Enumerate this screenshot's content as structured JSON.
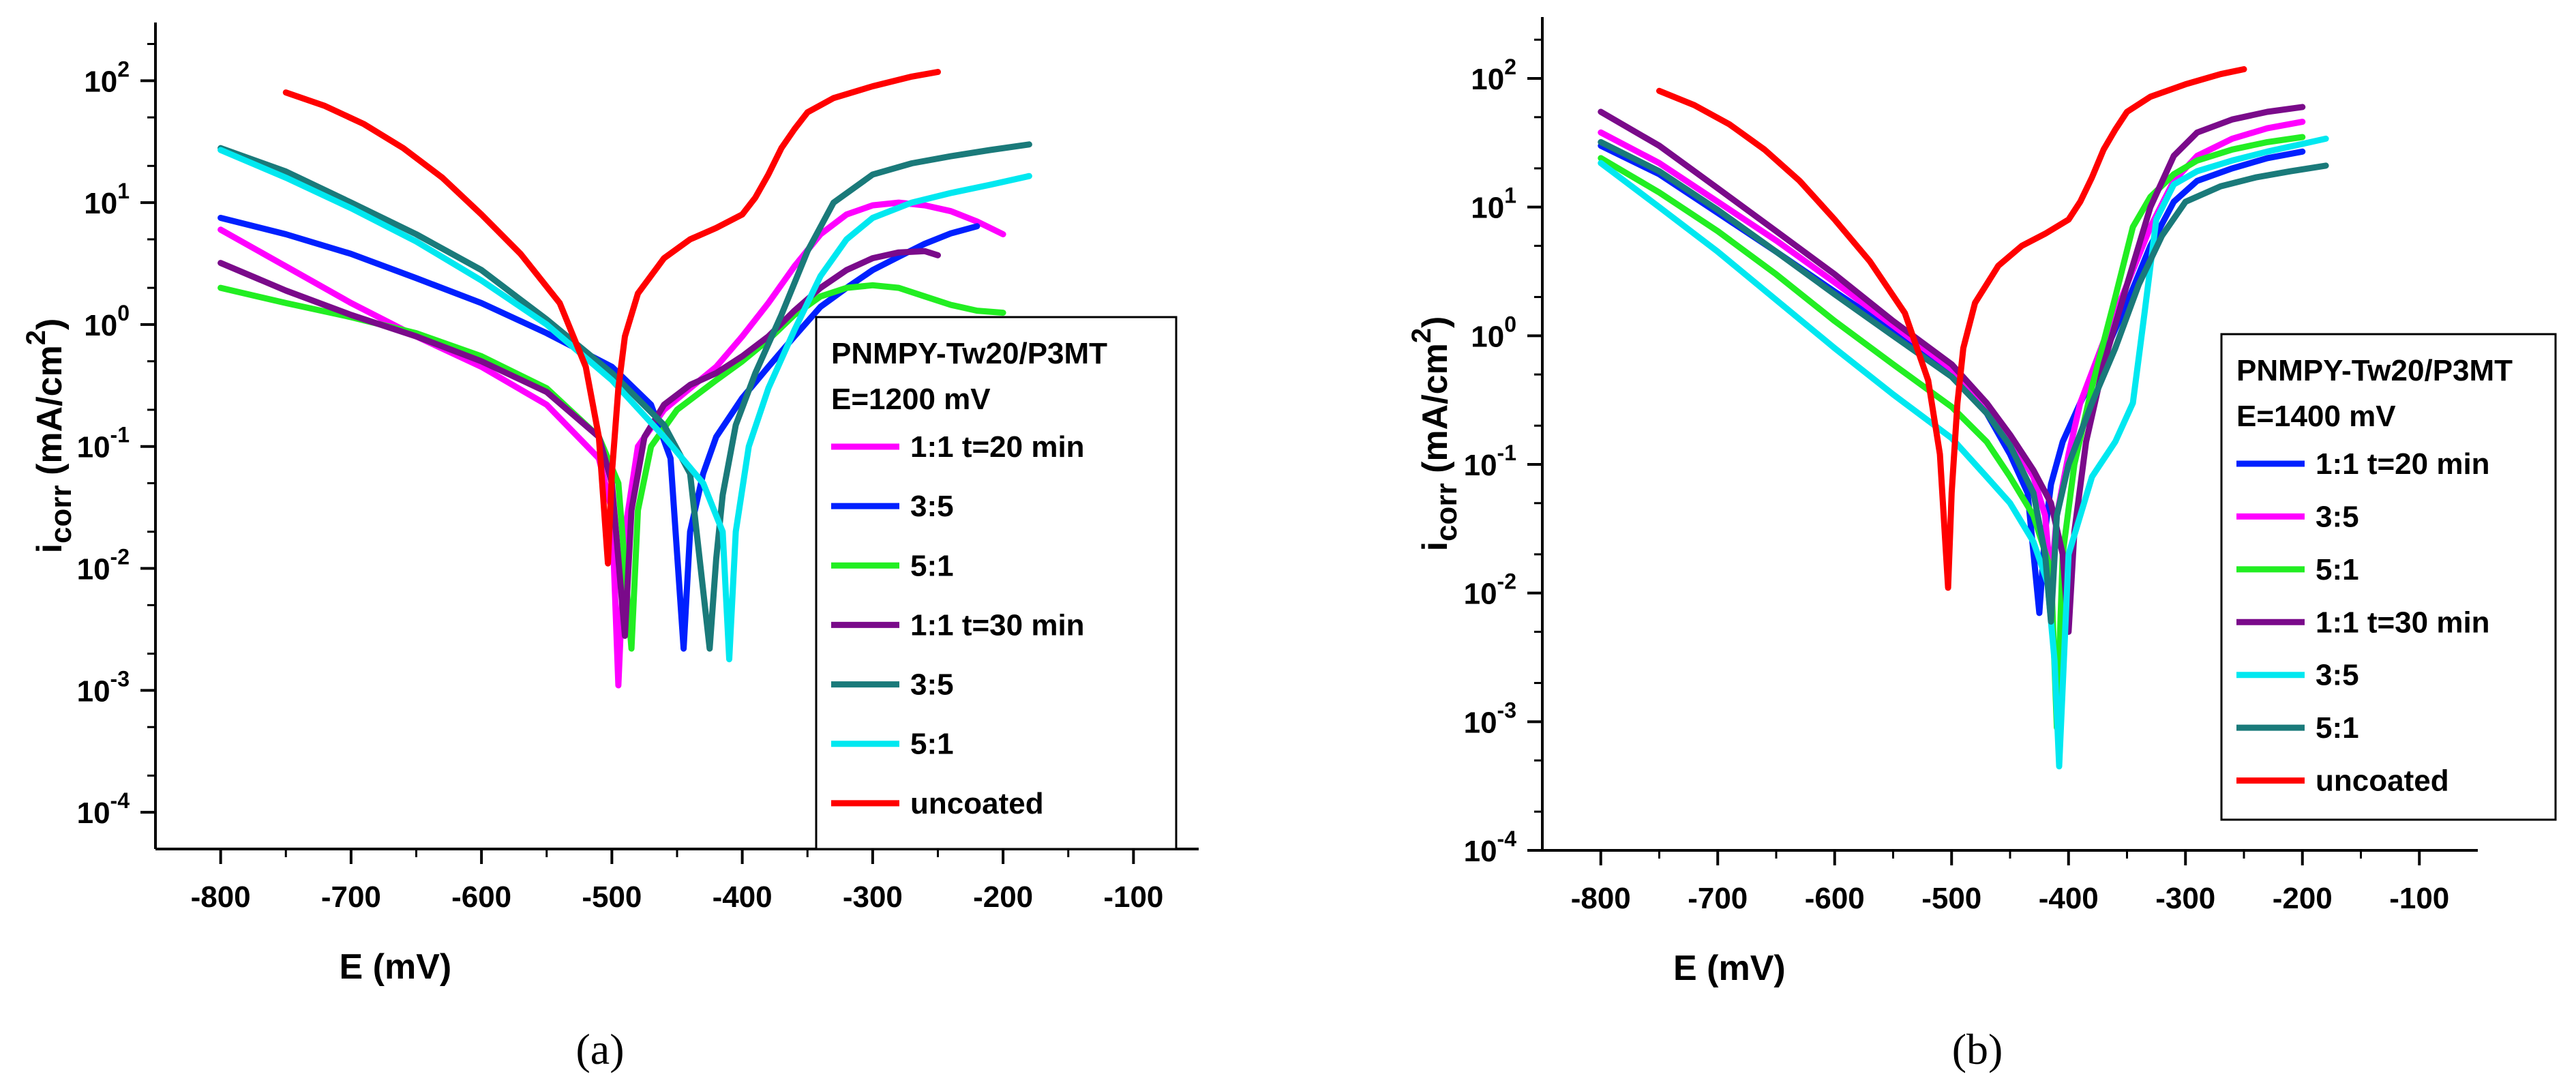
{
  "chart_data": [
    {
      "panel": "a",
      "type": "line",
      "caption": "(a)",
      "xlabel": "E (mV)",
      "ylabel": "i",
      "ylabel_sub": "corr",
      "ylabel_unit": " (mA/cm",
      "ylabel_unit_sup": "2",
      "ylabel_close": ")",
      "xlim": [
        -850,
        -50
      ],
      "ylim": [
        5e-05,
        300
      ],
      "yscale": "log",
      "xticks": [
        -800,
        -700,
        -600,
        -500,
        -400,
        -300,
        -200,
        -100
      ],
      "yticks": [
        {
          "base": "10",
          "exp": "2",
          "v": 100
        },
        {
          "base": "10",
          "exp": "1",
          "v": 10
        },
        {
          "base": "10",
          "exp": "0",
          "v": 1
        },
        {
          "base": "10",
          "exp": "-1",
          "v": 0.1
        },
        {
          "base": "10",
          "exp": "-2",
          "v": 0.01
        },
        {
          "base": "10",
          "exp": "-3",
          "v": 0.001
        },
        {
          "base": "10",
          "exp": "-4",
          "v": 0.0001
        }
      ],
      "legend_title": "PNMPY-Tw20/P3MT",
      "legend_subtitle": "E=1200 mV",
      "legend_position": "right",
      "series": [
        {
          "name": "1:1 t=20 min",
          "color": "#ff00ff",
          "x": [
            -800,
            -750,
            -700,
            -650,
            -600,
            -550,
            -510,
            -500,
            -495,
            -490,
            -480,
            -460,
            -440,
            -420,
            -400,
            -380,
            -360,
            -340,
            -320,
            -300,
            -280,
            -260,
            -240,
            -220,
            -200
          ],
          "y": [
            6,
            3,
            1.5,
            0.8,
            0.45,
            0.22,
            0.08,
            0.03,
            0.0011,
            0.02,
            0.1,
            0.2,
            0.3,
            0.45,
            0.8,
            1.5,
            3,
            5.5,
            8,
            9.5,
            10,
            9.5,
            8.5,
            7,
            5.5
          ]
        },
        {
          "name": "3:5",
          "color": "#0020ff",
          "x": [
            -800,
            -750,
            -700,
            -650,
            -600,
            -550,
            -500,
            -470,
            -455,
            -445,
            -440,
            -430,
            -420,
            -400,
            -380,
            -360,
            -340,
            -320,
            -300,
            -280,
            -260,
            -240,
            -220
          ],
          "y": [
            7.5,
            5.5,
            3.8,
            2.4,
            1.5,
            0.85,
            0.45,
            0.22,
            0.08,
            0.0022,
            0.02,
            0.06,
            0.12,
            0.25,
            0.45,
            0.8,
            1.4,
            2,
            2.8,
            3.6,
            4.6,
            5.6,
            6.4
          ]
        },
        {
          "name": "5:1",
          "color": "#22ee22",
          "x": [
            -800,
            -750,
            -700,
            -650,
            -600,
            -550,
            -510,
            -495,
            -485,
            -480,
            -470,
            -450,
            -420,
            -400,
            -380,
            -360,
            -340,
            -320,
            -300,
            -280,
            -260,
            -240,
            -220,
            -200
          ],
          "y": [
            2,
            1.5,
            1.15,
            0.85,
            0.55,
            0.3,
            0.12,
            0.05,
            0.0022,
            0.03,
            0.1,
            0.2,
            0.35,
            0.5,
            0.75,
            1.2,
            1.7,
            2,
            2.1,
            2,
            1.7,
            1.45,
            1.3,
            1.25
          ]
        },
        {
          "name": "1:1 t=30 min",
          "color": "#7a0a8a",
          "x": [
            -800,
            -750,
            -700,
            -650,
            -600,
            -550,
            -510,
            -500,
            -490,
            -485,
            -475,
            -460,
            -440,
            -420,
            -400,
            -380,
            -360,
            -340,
            -320,
            -300,
            -280,
            -260,
            -250
          ],
          "y": [
            3.2,
            1.9,
            1.2,
            0.8,
            0.5,
            0.28,
            0.12,
            0.05,
            0.0028,
            0.03,
            0.12,
            0.22,
            0.32,
            0.4,
            0.55,
            0.8,
            1.3,
            2,
            2.8,
            3.5,
            3.9,
            4,
            3.7
          ]
        },
        {
          "name": "3:5",
          "color": "#1a7a7a",
          "x": [
            -800,
            -750,
            -700,
            -650,
            -600,
            -550,
            -500,
            -460,
            -440,
            -425,
            -420,
            -415,
            -405,
            -390,
            -370,
            -350,
            -330,
            -300,
            -270,
            -240,
            -210,
            -180
          ],
          "y": [
            28,
            18,
            10,
            5.5,
            2.8,
            1.1,
            0.4,
            0.15,
            0.06,
            0.0022,
            0.012,
            0.04,
            0.15,
            0.4,
            1.2,
            4,
            10,
            17,
            21,
            24,
            27,
            30
          ]
        },
        {
          "name": "5:1",
          "color": "#00e8f0",
          "x": [
            -800,
            -750,
            -700,
            -650,
            -600,
            -550,
            -500,
            -460,
            -430,
            -415,
            -410,
            -405,
            -395,
            -380,
            -360,
            -340,
            -320,
            -300,
            -270,
            -240,
            -210,
            -180
          ],
          "y": [
            27,
            16,
            9,
            4.8,
            2.3,
            1.0,
            0.35,
            0.12,
            0.05,
            0.02,
            0.0018,
            0.02,
            0.1,
            0.3,
            0.9,
            2.5,
            5,
            7.5,
            10,
            12,
            14,
            16.5
          ]
        },
        {
          "name": "uncoated",
          "color": "#ff0000",
          "x": [
            -750,
            -720,
            -690,
            -660,
            -630,
            -600,
            -570,
            -540,
            -520,
            -510,
            -503,
            -500,
            -495,
            -490,
            -480,
            -460,
            -440,
            -420,
            -400,
            -390,
            -380,
            -370,
            -360,
            -350,
            -330,
            -300,
            -270,
            -250
          ],
          "y": [
            80,
            62,
            44,
            28,
            16,
            8,
            3.8,
            1.5,
            0.45,
            0.12,
            0.011,
            0.06,
            0.3,
            0.8,
            1.8,
            3.5,
            5,
            6.2,
            8,
            11,
            17,
            28,
            40,
            55,
            72,
            90,
            108,
            118
          ]
        }
      ]
    },
    {
      "panel": "b",
      "type": "line",
      "caption": "(b)",
      "xlabel": "E (mV)",
      "ylabel": "i",
      "ylabel_sub": "corr",
      "ylabel_unit": " (mA/cm",
      "ylabel_unit_sup": "2",
      "ylabel_close": ")",
      "xlim": [
        -850,
        -50
      ],
      "ylim": [
        0.0001,
        300
      ],
      "yscale": "log",
      "xticks": [
        -800,
        -700,
        -600,
        -500,
        -400,
        -300,
        -200,
        -100
      ],
      "yticks": [
        {
          "base": "10",
          "exp": "2",
          "v": 100
        },
        {
          "base": "10",
          "exp": "1",
          "v": 10
        },
        {
          "base": "10",
          "exp": "0",
          "v": 1
        },
        {
          "base": "10",
          "exp": "-1",
          "v": 0.1
        },
        {
          "base": "10",
          "exp": "-2",
          "v": 0.01
        },
        {
          "base": "10",
          "exp": "-3",
          "v": 0.001
        },
        {
          "base": "10",
          "exp": "-4",
          "v": 0.0001
        }
      ],
      "legend_title": "PNMPY-Tw20/P3MT",
      "legend_subtitle": "E=1400 mV",
      "legend_position": "right",
      "series": [
        {
          "name": "1:1 t=20 min",
          "color": "#0020ff",
          "x": [
            -800,
            -750,
            -700,
            -650,
            -600,
            -550,
            -500,
            -470,
            -450,
            -435,
            -425,
            -420,
            -415,
            -405,
            -390,
            -370,
            -350,
            -330,
            -310,
            -290,
            -260,
            -230,
            -200
          ],
          "y": [
            30,
            18,
            9,
            4.5,
            2.2,
            1.1,
            0.5,
            0.25,
            0.12,
            0.06,
            0.007,
            0.03,
            0.07,
            0.15,
            0.3,
            0.7,
            1.8,
            5,
            11,
            16,
            20,
            24,
            27
          ]
        },
        {
          "name": "3:5",
          "color": "#ff00ff",
          "x": [
            -800,
            -750,
            -700,
            -650,
            -600,
            -550,
            -500,
            -470,
            -450,
            -430,
            -420,
            -415,
            -410,
            -400,
            -390,
            -370,
            -350,
            -330,
            -310,
            -290,
            -260,
            -230,
            -200
          ],
          "y": [
            38,
            22,
            11,
            5.5,
            2.6,
            1.2,
            0.55,
            0.28,
            0.16,
            0.08,
            0.04,
            0.012,
            0.04,
            0.12,
            0.3,
            0.9,
            2.5,
            7,
            16,
            25,
            34,
            41,
            46
          ]
        },
        {
          "name": "5:1",
          "color": "#22ee22",
          "x": [
            -800,
            -750,
            -700,
            -650,
            -600,
            -550,
            -500,
            -470,
            -450,
            -430,
            -415,
            -410,
            -405,
            -395,
            -380,
            -360,
            -345,
            -330,
            -310,
            -290,
            -260,
            -230,
            -200
          ],
          "y": [
            24,
            13,
            6.5,
            3,
            1.3,
            0.6,
            0.28,
            0.15,
            0.08,
            0.04,
            0.015,
            0.0009,
            0.02,
            0.1,
            0.4,
            2,
            7,
            12,
            18,
            23,
            28,
            32,
            35
          ]
        },
        {
          "name": "1:1 t=30 min",
          "color": "#7a0a8a",
          "x": [
            -800,
            -750,
            -700,
            -650,
            -600,
            -550,
            -500,
            -470,
            -450,
            -430,
            -415,
            -405,
            -400,
            -395,
            -385,
            -370,
            -350,
            -330,
            -310,
            -290,
            -260,
            -230,
            -200
          ],
          "y": [
            55,
            30,
            14,
            6.5,
            3,
            1.3,
            0.6,
            0.3,
            0.17,
            0.09,
            0.05,
            0.02,
            0.005,
            0.03,
            0.15,
            0.6,
            2.5,
            10,
            25,
            38,
            48,
            55,
            60
          ]
        },
        {
          "name": "3:5",
          "color": "#00e8f0",
          "x": [
            -800,
            -750,
            -700,
            -650,
            -600,
            -550,
            -500,
            -470,
            -450,
            -430,
            -418,
            -412,
            -408,
            -400,
            -380,
            -360,
            -345,
            -335,
            -325,
            -310,
            -290,
            -260,
            -230,
            -200,
            -180
          ],
          "y": [
            22,
            10,
            4.5,
            1.9,
            0.8,
            0.35,
            0.16,
            0.08,
            0.05,
            0.025,
            0.012,
            0.003,
            0.00045,
            0.02,
            0.08,
            0.15,
            0.3,
            1.5,
            8,
            15,
            19,
            23,
            27,
            31,
            34
          ]
        },
        {
          "name": "5:1",
          "color": "#1a7a7a",
          "x": [
            -800,
            -750,
            -700,
            -650,
            -600,
            -550,
            -500,
            -470,
            -450,
            -430,
            -420,
            -415,
            -410,
            -400,
            -380,
            -360,
            -340,
            -320,
            -300,
            -270,
            -240,
            -210,
            -180
          ],
          "y": [
            32,
            19,
            9.5,
            4.5,
            2.1,
            1,
            0.48,
            0.25,
            0.14,
            0.06,
            0.02,
            0.006,
            0.04,
            0.1,
            0.3,
            0.8,
            2.5,
            6,
            11,
            14.5,
            17,
            19,
            21
          ]
        },
        {
          "name": "uncoated",
          "color": "#ff0000",
          "x": [
            -750,
            -720,
            -690,
            -660,
            -630,
            -600,
            -570,
            -540,
            -520,
            -510,
            -503,
            -500,
            -495,
            -490,
            -480,
            -460,
            -440,
            -420,
            -400,
            -390,
            -380,
            -370,
            -360,
            -350,
            -330,
            -300,
            -270,
            -250
          ],
          "y": [
            80,
            62,
            44,
            28,
            16,
            8,
            3.8,
            1.5,
            0.45,
            0.12,
            0.011,
            0.06,
            0.3,
            0.8,
            1.8,
            3.5,
            5,
            6.2,
            8,
            11,
            17,
            28,
            40,
            55,
            72,
            90,
            108,
            118
          ]
        }
      ]
    }
  ]
}
